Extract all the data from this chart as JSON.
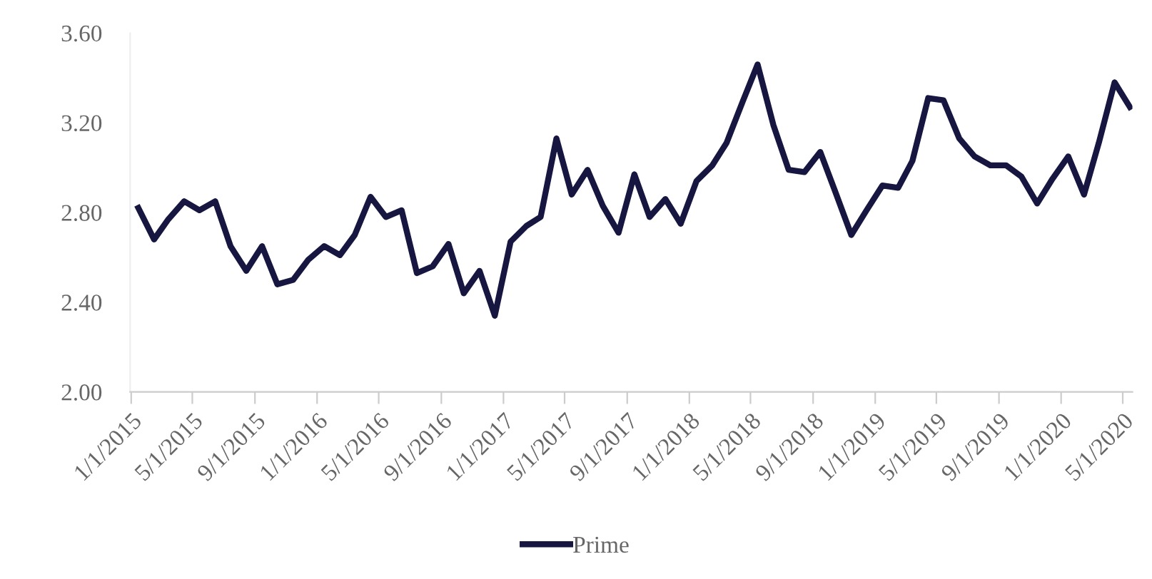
{
  "chart_data": {
    "type": "line",
    "x": [
      "2015-01-15",
      "2015-02-15",
      "2015-03-15",
      "2015-04-15",
      "2015-05-15",
      "2015-06-15",
      "2015-07-15",
      "2015-08-15",
      "2015-09-15",
      "2015-10-15",
      "2015-11-15",
      "2015-12-15",
      "2016-01-15",
      "2016-02-15",
      "2016-03-15",
      "2016-04-15",
      "2016-05-15",
      "2016-06-15",
      "2016-07-15",
      "2016-08-15",
      "2016-09-15",
      "2016-10-15",
      "2016-11-15",
      "2016-12-15",
      "2017-01-15",
      "2017-02-15",
      "2017-03-15",
      "2017-04-15",
      "2017-05-15",
      "2017-06-15",
      "2017-07-15",
      "2017-08-15",
      "2017-09-15",
      "2017-10-15",
      "2017-11-15",
      "2017-12-15",
      "2018-01-15",
      "2018-02-15",
      "2018-03-15",
      "2018-04-15",
      "2018-05-15",
      "2018-06-15",
      "2018-07-15",
      "2018-08-15",
      "2018-09-15",
      "2018-10-15",
      "2018-11-15",
      "2018-12-15",
      "2019-01-15",
      "2019-02-15",
      "2019-03-15",
      "2019-04-15",
      "2019-05-15",
      "2019-06-15",
      "2019-07-15",
      "2019-08-15",
      "2019-09-15",
      "2019-10-15",
      "2019-11-15",
      "2019-12-15",
      "2020-01-15",
      "2020-02-15",
      "2020-03-15",
      "2020-04-15",
      "2020-05-15"
    ],
    "series": [
      {
        "name": "Prime",
        "color": "#161640",
        "values": [
          2.82,
          2.68,
          2.77,
          2.85,
          2.81,
          2.85,
          2.65,
          2.54,
          2.65,
          2.48,
          2.5,
          2.59,
          2.65,
          2.61,
          2.7,
          2.87,
          2.78,
          2.81,
          2.53,
          2.56,
          2.66,
          2.44,
          2.54,
          2.34,
          2.67,
          2.74,
          2.78,
          3.13,
          2.88,
          2.99,
          2.83,
          2.71,
          2.97,
          2.78,
          2.86,
          2.75,
          2.94,
          3.01,
          3.11,
          3.29,
          3.46,
          3.19,
          2.99,
          2.98,
          3.07,
          2.89,
          2.7,
          2.81,
          2.92,
          2.91,
          3.03,
          3.31,
          3.3,
          3.13,
          3.05,
          3.01,
          3.01,
          2.96,
          2.84,
          2.95,
          3.05,
          2.88,
          3.11,
          3.38,
          3.27
        ]
      }
    ],
    "ylim": [
      2.0,
      3.6
    ],
    "yticks": [
      {
        "value": 2.0,
        "label": "2.00"
      },
      {
        "value": 2.4,
        "label": "2.40"
      },
      {
        "value": 2.8,
        "label": "2.80"
      },
      {
        "value": 3.2,
        "label": "3.20"
      },
      {
        "value": 3.6,
        "label": "3.60"
      }
    ],
    "xlim": [
      "2014-12-30",
      "2020-05-20"
    ],
    "xticks": [
      {
        "value": "2015-01-01",
        "label": "1/1/2015"
      },
      {
        "value": "2015-05-01",
        "label": "5/1/2015"
      },
      {
        "value": "2015-09-01",
        "label": "9/1/2015"
      },
      {
        "value": "2016-01-01",
        "label": "1/1/2016"
      },
      {
        "value": "2016-05-01",
        "label": "5/1/2016"
      },
      {
        "value": "2016-09-01",
        "label": "9/1/2016"
      },
      {
        "value": "2017-01-01",
        "label": "1/1/2017"
      },
      {
        "value": "2017-05-01",
        "label": "5/1/2017"
      },
      {
        "value": "2017-09-01",
        "label": "9/1/2017"
      },
      {
        "value": "2018-01-01",
        "label": "1/1/2018"
      },
      {
        "value": "2018-05-01",
        "label": "5/1/2018"
      },
      {
        "value": "2018-09-01",
        "label": "9/1/2018"
      },
      {
        "value": "2019-01-01",
        "label": "1/1/2019"
      },
      {
        "value": "2019-05-01",
        "label": "5/1/2019"
      },
      {
        "value": "2019-09-01",
        "label": "9/1/2019"
      },
      {
        "value": "2020-01-01",
        "label": "1/1/2020"
      },
      {
        "value": "2020-05-01",
        "label": "5/1/2020"
      }
    ],
    "grid": false,
    "legend": "bottom",
    "marker": "none",
    "line_style": "solid"
  }
}
